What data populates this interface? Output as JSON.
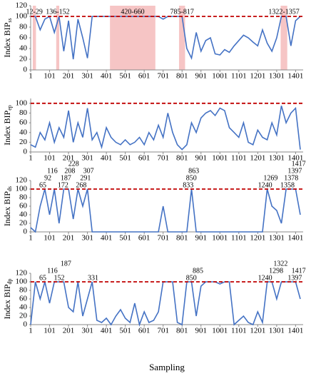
{
  "xlabel": "Sampling",
  "chart_data": [
    {
      "type": "line",
      "ylabel": "Index BIP",
      "ylabel_sub": "ss",
      "color": "#4472c4",
      "threshold": 100,
      "threshold_color": "#c00000",
      "xlim": [
        1,
        1441
      ],
      "xticks": [
        1,
        101,
        201,
        301,
        401,
        501,
        601,
        701,
        801,
        901,
        1001,
        1101,
        1201,
        1301,
        1401
      ],
      "ylim": [
        0,
        120
      ],
      "yticks": [
        0,
        20,
        40,
        60,
        80,
        100,
        120
      ],
      "shaded_color": "#f4b6b6",
      "shaded": [
        {
          "label": "12-29",
          "start": 12,
          "end": 29
        },
        {
          "label": "136-152",
          "start": 136,
          "end": 152
        },
        {
          "label": "420-660",
          "start": 420,
          "end": 660
        },
        {
          "label": "785-817",
          "start": 785,
          "end": 817
        },
        {
          "label": "1322-1357",
          "start": 1322,
          "end": 1357
        }
      ],
      "x": [
        1,
        26,
        51,
        76,
        101,
        126,
        151,
        176,
        201,
        226,
        251,
        276,
        301,
        326,
        351,
        376,
        401,
        426,
        451,
        476,
        501,
        526,
        551,
        576,
        601,
        626,
        651,
        676,
        701,
        726,
        751,
        776,
        801,
        826,
        851,
        876,
        901,
        926,
        951,
        976,
        1001,
        1026,
        1051,
        1076,
        1101,
        1126,
        1151,
        1176,
        1201,
        1226,
        1251,
        1276,
        1301,
        1326,
        1351,
        1376,
        1401,
        1426
      ],
      "values": [
        100,
        100,
        75,
        95,
        100,
        70,
        100,
        35,
        92,
        20,
        95,
        60,
        22,
        100,
        100,
        100,
        100,
        100,
        100,
        100,
        100,
        100,
        100,
        100,
        100,
        100,
        100,
        100,
        95,
        100,
        100,
        100,
        100,
        40,
        22,
        70,
        35,
        55,
        60,
        30,
        28,
        38,
        33,
        45,
        55,
        65,
        60,
        52,
        45,
        75,
        50,
        35,
        60,
        100,
        100,
        45,
        92,
        100
      ]
    },
    {
      "type": "line",
      "ylabel": "Index BIP",
      "ylabel_sub": "ep",
      "color": "#4472c4",
      "threshold": 100,
      "threshold_color": "#c00000",
      "xlim": [
        1,
        1441
      ],
      "xticks": [
        1,
        101,
        201,
        301,
        401,
        501,
        601,
        701,
        801,
        901,
        1001,
        1101,
        1201,
        1301,
        1401
      ],
      "ylim": [
        0,
        110
      ],
      "yticks": [
        0,
        20,
        40,
        60,
        80,
        100
      ],
      "x": [
        1,
        26,
        51,
        76,
        101,
        126,
        151,
        176,
        201,
        226,
        251,
        276,
        301,
        326,
        351,
        376,
        401,
        426,
        451,
        476,
        501,
        526,
        551,
        576,
        601,
        626,
        651,
        676,
        701,
        726,
        751,
        776,
        801,
        826,
        851,
        876,
        901,
        926,
        951,
        976,
        1001,
        1026,
        1051,
        1076,
        1101,
        1126,
        1151,
        1176,
        1201,
        1226,
        1251,
        1276,
        1301,
        1326,
        1351,
        1376,
        1401,
        1426
      ],
      "values": [
        15,
        10,
        40,
        25,
        60,
        20,
        50,
        30,
        85,
        20,
        60,
        30,
        90,
        25,
        40,
        10,
        50,
        30,
        20,
        15,
        25,
        15,
        20,
        30,
        15,
        40,
        25,
        55,
        30,
        80,
        40,
        15,
        5,
        15,
        60,
        40,
        70,
        80,
        85,
        75,
        90,
        85,
        50,
        40,
        30,
        60,
        20,
        15,
        45,
        30,
        25,
        60,
        35,
        95,
        60,
        80,
        90,
        5
      ]
    },
    {
      "type": "line",
      "ylabel": "Index BIP",
      "ylabel_sub": "ds",
      "color": "#4472c4",
      "threshold": 100,
      "threshold_color": "#c00000",
      "xlim": [
        1,
        1441
      ],
      "xticks": [
        1,
        101,
        201,
        301,
        401,
        501,
        601,
        701,
        801,
        901,
        1001,
        1101,
        1201,
        1301,
        1401
      ],
      "ylim": [
        0,
        120
      ],
      "yticks": [
        0,
        20,
        40,
        60,
        80,
        100,
        120
      ],
      "peak_labels": [
        65,
        92,
        116,
        172,
        187,
        208,
        228,
        268,
        291,
        307,
        833,
        850,
        863,
        1240,
        1269,
        1358,
        1378,
        1397,
        1417
      ],
      "x": [
        1,
        26,
        51,
        76,
        101,
        126,
        151,
        176,
        201,
        226,
        251,
        276,
        301,
        326,
        351,
        376,
        401,
        426,
        451,
        476,
        501,
        526,
        551,
        576,
        601,
        626,
        651,
        676,
        701,
        726,
        751,
        776,
        801,
        826,
        851,
        876,
        901,
        926,
        951,
        976,
        1001,
        1026,
        1051,
        1076,
        1101,
        1126,
        1151,
        1176,
        1201,
        1226,
        1251,
        1276,
        1301,
        1326,
        1351,
        1376,
        1401,
        1426
      ],
      "values": [
        10,
        0,
        60,
        100,
        40,
        100,
        20,
        100,
        100,
        30,
        100,
        60,
        100,
        0,
        0,
        0,
        0,
        0,
        0,
        0,
        0,
        0,
        0,
        0,
        0,
        0,
        0,
        0,
        60,
        0,
        0,
        0,
        0,
        0,
        100,
        0,
        0,
        0,
        0,
        0,
        0,
        0,
        0,
        0,
        0,
        0,
        0,
        0,
        0,
        0,
        100,
        60,
        50,
        20,
        100,
        100,
        100,
        40
      ]
    },
    {
      "type": "line",
      "ylabel": "Index BIP",
      "ylabel_sub": "dp",
      "color": "#4472c4",
      "threshold": 100,
      "threshold_color": "#c00000",
      "xlim": [
        1,
        1441
      ],
      "xticks": [
        1,
        101,
        201,
        301,
        401,
        501,
        601,
        701,
        801,
        901,
        1001,
        1101,
        1201,
        1301,
        1401
      ],
      "ylim": [
        0,
        120
      ],
      "yticks": [
        0,
        20,
        40,
        60,
        80,
        100,
        120
      ],
      "peak_labels": [
        65,
        116,
        152,
        187,
        331,
        850,
        885,
        1240,
        1298,
        1322,
        1397,
        1417
      ],
      "x": [
        1,
        26,
        51,
        76,
        101,
        126,
        151,
        176,
        201,
        226,
        251,
        276,
        301,
        326,
        351,
        376,
        401,
        426,
        451,
        476,
        501,
        526,
        551,
        576,
        601,
        626,
        651,
        676,
        701,
        726,
        751,
        776,
        801,
        826,
        851,
        876,
        901,
        926,
        951,
        976,
        1001,
        1026,
        1051,
        1076,
        1101,
        1126,
        1151,
        1176,
        1201,
        1226,
        1251,
        1276,
        1301,
        1326,
        1351,
        1376,
        1401,
        1426
      ],
      "values": [
        0,
        100,
        60,
        100,
        50,
        100,
        100,
        100,
        40,
        30,
        100,
        20,
        60,
        100,
        10,
        5,
        15,
        0,
        20,
        35,
        15,
        5,
        50,
        0,
        30,
        5,
        10,
        30,
        100,
        100,
        100,
        5,
        0,
        100,
        100,
        20,
        90,
        100,
        100,
        100,
        95,
        100,
        100,
        0,
        10,
        20,
        5,
        0,
        30,
        5,
        100,
        100,
        60,
        100,
        100,
        100,
        100,
        60
      ]
    }
  ]
}
